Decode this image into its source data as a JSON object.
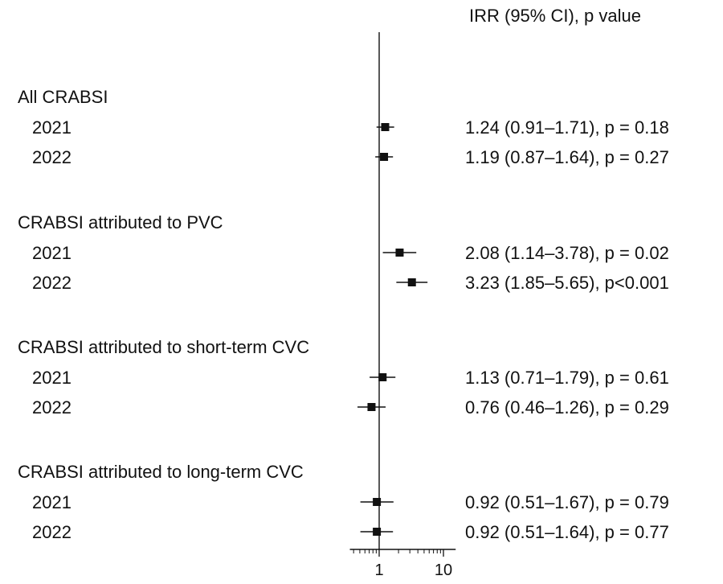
{
  "chart_data": {
    "type": "forest",
    "column_header": "IRR (95% CI), p value",
    "x_scale": "log",
    "x_ticks": [
      1,
      10
    ],
    "x_tick_labels": [
      "1",
      "10"
    ],
    "reference_line": 1,
    "groups": [
      {
        "label": "All CRABSI",
        "rows": [
          {
            "year": "2021",
            "irr": 1.24,
            "lo": 0.91,
            "hi": 1.71,
            "text": "1.24 (0.91–1.71), p = 0.18"
          },
          {
            "year": "2022",
            "irr": 1.19,
            "lo": 0.87,
            "hi": 1.64,
            "text": "1.19 (0.87–1.64), p = 0.27"
          }
        ]
      },
      {
        "label": "CRABSI attributed to PVC",
        "rows": [
          {
            "year": "2021",
            "irr": 2.08,
            "lo": 1.14,
            "hi": 3.78,
            "text": "2.08 (1.14–3.78), p = 0.02"
          },
          {
            "year": "2022",
            "irr": 3.23,
            "lo": 1.85,
            "hi": 5.65,
            "text": "3.23 (1.85–5.65), p<0.001"
          }
        ]
      },
      {
        "label": "CRABSI attributed to short-term CVC",
        "rows": [
          {
            "year": "2021",
            "irr": 1.13,
            "lo": 0.71,
            "hi": 1.79,
            "text": "1.13 (0.71–1.79), p = 0.61"
          },
          {
            "year": "2022",
            "irr": 0.76,
            "lo": 0.46,
            "hi": 1.26,
            "text": "0.76 (0.46–1.26), p = 0.29"
          }
        ]
      },
      {
        "label": "CRABSI attributed to long-term CVC",
        "rows": [
          {
            "year": "2021",
            "irr": 0.92,
            "lo": 0.51,
            "hi": 1.67,
            "text": "0.92 (0.51–1.67), p = 0.79"
          },
          {
            "year": "2022",
            "irr": 0.92,
            "lo": 0.51,
            "hi": 1.64,
            "text": "0.92 (0.51–1.64), p = 0.77"
          }
        ]
      }
    ]
  }
}
